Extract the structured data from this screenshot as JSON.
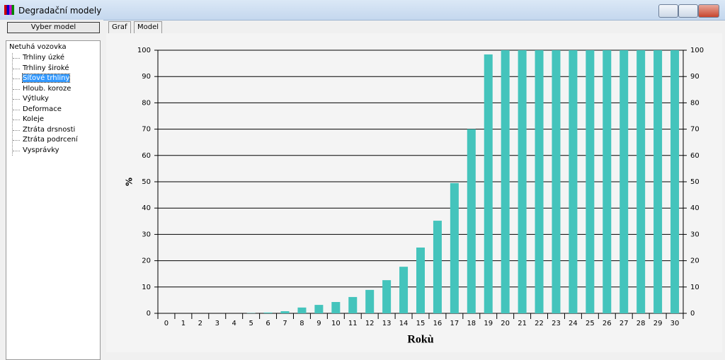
{
  "window": {
    "title": "Degradační modely"
  },
  "sidebar": {
    "button": "Vyber model",
    "tree": {
      "root": "Netuhá vozovka",
      "items": [
        "Trhliny úzké",
        "Trhliny široké",
        "Síťové trhliny",
        "Hloub. koroze",
        "Výtluky",
        "Deformace",
        "Koleje",
        "Ztráta drsnosti",
        "Ztráta podrcení",
        "Vysprávky"
      ]
    }
  },
  "tabs": [
    "Graf",
    "Model"
  ],
  "chart_data": {
    "type": "bar",
    "categories": [
      "0",
      "1",
      "2",
      "3",
      "4",
      "5",
      "6",
      "7",
      "8",
      "9",
      "10",
      "11",
      "12",
      "13",
      "14",
      "15",
      "16",
      "17",
      "18",
      "19",
      "20",
      "21",
      "22",
      "23",
      "24",
      "25",
      "26",
      "27",
      "28",
      "29",
      "30"
    ],
    "values": [
      0,
      0,
      0,
      0,
      0,
      0.1,
      0.3,
      0.8,
      2.2,
      3.2,
      4.3,
      6.2,
      8.9,
      12.6,
      17.7,
      25,
      35.2,
      49.5,
      70,
      98.4,
      100,
      100,
      100,
      100,
      100,
      100,
      100,
      100,
      100,
      100,
      100
    ],
    "color": "#44c4bc",
    "ylabel": "%",
    "xlabel": "Rokù",
    "ylim": [
      0,
      100
    ],
    "yticks": [
      0,
      10,
      20,
      30,
      40,
      50,
      60,
      70,
      80,
      90,
      100
    ],
    "y2lim": [
      0,
      100
    ],
    "y2ticks": [
      0,
      10,
      20,
      30,
      40,
      50,
      60,
      70,
      80,
      90,
      100
    ],
    "grid": true
  }
}
